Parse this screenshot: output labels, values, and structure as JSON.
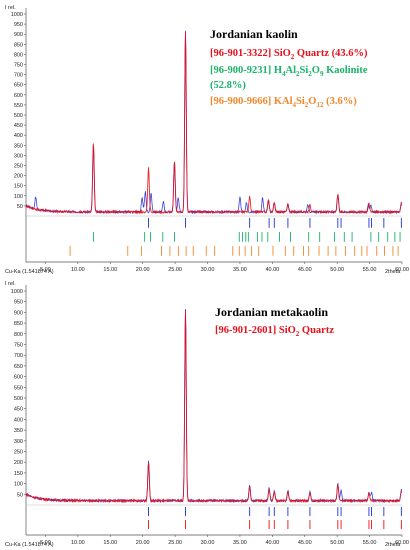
{
  "figure": {
    "panels": [
      {
        "id": "top",
        "yaxis_label": "I rel.",
        "xaxis_label": "2theta",
        "source_label": "Cu-Ka (1.541874 A)",
        "legend_title": "Jordanian kaolin",
        "legend_entries": [
          {
            "prefix": "[96-901-3322] SiO",
            "sub1": "2",
            "mid1": " Quartz (43.6%)",
            "sub2": "",
            "mid2": "",
            "sub3": "",
            "mid3": "",
            "color": "#e8101a"
          },
          {
            "prefix": "[96-900-9231] H",
            "sub1": "4",
            "mid1": "Al",
            "sub2": "2",
            "mid2": "Si",
            "sub3": "2",
            "mid3": "O",
            "sub4": "9",
            "suffix": " Kaolinite",
            "color": "#19b46a"
          },
          {
            "prefix": "(52.8%)",
            "color": "#19b46a"
          },
          {
            "prefix": "[96-900-9666] KAl",
            "sub1": "4",
            "mid1": "Si",
            "sub2": "2",
            "mid2": "O",
            "sub3": "12",
            "mid3": " (3.6%)",
            "color": "#f2872a"
          }
        ]
      },
      {
        "id": "bottom",
        "yaxis_label": "I rel.",
        "xaxis_label": "2theta",
        "source_label": "Cu-Ka (1.541874 A)",
        "legend_title": "Jordanian metakaolin",
        "legend_entries": [
          {
            "prefix": "[96-901-2601] SiO",
            "sub1": "2",
            "mid1": " Quartz",
            "color": "#e8101a"
          }
        ]
      }
    ]
  },
  "chart_data": [
    {
      "type": "line",
      "title": "Jordanian kaolin",
      "xlabel": "2theta",
      "ylabel": "I rel.",
      "xlim": [
        2,
        60
      ],
      "ylim": [
        0,
        1000
      ],
      "yticks": [
        50,
        100,
        150,
        200,
        250,
        300,
        350,
        400,
        450,
        500,
        550,
        600,
        650,
        700,
        750,
        800,
        850,
        900,
        950,
        1000
      ],
      "xticks": [
        5,
        10,
        15,
        20,
        25,
        30,
        35,
        40,
        45,
        50,
        55,
        60
      ],
      "xtick_labels": [
        "5.00",
        "10.00",
        "15.00",
        "20.00",
        "25.00",
        "30.00",
        "35.00",
        "40.00",
        "45.00",
        "50.00",
        "55.00",
        "60.00"
      ],
      "series": [
        {
          "color": "#1f2fd6",
          "peaks": [
            [
              3.5,
              60
            ],
            [
              12.4,
              330
            ],
            [
              19.9,
              70
            ],
            [
              20.4,
              100
            ],
            [
              21.3,
              90
            ],
            [
              23.2,
              50
            ],
            [
              24.9,
              245
            ],
            [
              25.5,
              70
            ],
            [
              26.6,
              900
            ],
            [
              35.0,
              75
            ],
            [
              36.0,
              45
            ],
            [
              38.5,
              70
            ],
            [
              39.4,
              55
            ],
            [
              40.3,
              40
            ],
            [
              42.4,
              35
            ],
            [
              45.5,
              35
            ],
            [
              50.1,
              85
            ],
            [
              54.8,
              35
            ],
            [
              55.2,
              35
            ],
            [
              59.9,
              40
            ],
            [
              62.3,
              35
            ]
          ]
        },
        {
          "color": "#e8101a",
          "peaks": [
            [
              12.4,
              340
            ],
            [
              20.9,
              220
            ],
            [
              24.9,
              250
            ],
            [
              26.6,
              890
            ],
            [
              36.5,
              75
            ],
            [
              39.4,
              60
            ],
            [
              40.3,
              45
            ],
            [
              42.4,
              40
            ],
            [
              45.8,
              35
            ],
            [
              50.1,
              85
            ],
            [
              54.9,
              40
            ],
            [
              59.9,
              45
            ]
          ]
        }
      ],
      "reference_markers": [
        {
          "phase": "Quartz",
          "color": "#1f2fd6",
          "positions": [
            20.9,
            26.6,
            36.5,
            39.5,
            40.3,
            42.4,
            45.8,
            50.1,
            50.6,
            54.9,
            55.3,
            57.2,
            59.9
          ]
        },
        {
          "phase": "Kaolinite",
          "color": "#19b46a",
          "positions": [
            12.4,
            20.3,
            21.2,
            23.1,
            24.9,
            34.9,
            35.4,
            35.9,
            36.3,
            37.7,
            38.4,
            39.3,
            41.1,
            42.8,
            45.6,
            47.3,
            49.6,
            51.1,
            52.3,
            55.2,
            56.4,
            57.8,
            58.9,
            59.7
          ]
        },
        {
          "phase": "KAl4Si2O12",
          "color": "#f2872a",
          "positions": [
            8.8,
            17.7,
            19.8,
            22.9,
            24.2,
            25.5,
            26.7,
            27.8,
            29.8,
            31.1,
            33.9,
            34.9,
            35.8,
            36.8,
            37.9,
            40.1,
            42.0,
            43.3,
            44.8,
            45.6,
            47.2,
            48.6,
            49.8,
            51.3,
            52.7,
            53.8,
            54.6,
            56.1,
            57.3,
            58.6,
            59.4
          ]
        }
      ]
    },
    {
      "type": "line",
      "title": "Jordanian metakaolin",
      "xlabel": "2theta",
      "ylabel": "I rel.",
      "xlim": [
        2,
        60
      ],
      "ylim": [
        0,
        1000
      ],
      "yticks": [
        50,
        100,
        150,
        200,
        250,
        300,
        350,
        400,
        450,
        500,
        550,
        600,
        650,
        700,
        750,
        800,
        850,
        900,
        950,
        1000
      ],
      "xticks": [
        5,
        10,
        15,
        20,
        25,
        30,
        35,
        40,
        45,
        50,
        55,
        60
      ],
      "xtick_labels": [
        "5.00",
        "10.00",
        "15.00",
        "20.00",
        "25.00",
        "30.00",
        "35.00",
        "40.00",
        "45.00",
        "50.00",
        "55.00",
        "60.00"
      ],
      "series": [
        {
          "color": "#1f2fd6",
          "peaks": [
            [
              20.9,
              185
            ],
            [
              26.6,
              900
            ],
            [
              36.5,
              70
            ],
            [
              39.5,
              60
            ],
            [
              40.3,
              45
            ],
            [
              42.4,
              45
            ],
            [
              45.8,
              40
            ],
            [
              50.1,
              80
            ],
            [
              50.6,
              45
            ],
            [
              54.9,
              40
            ],
            [
              55.3,
              40
            ],
            [
              59.9,
              50
            ]
          ]
        },
        {
          "color": "#e8101a",
          "peaks": [
            [
              20.9,
              180
            ],
            [
              26.6,
              890
            ],
            [
              36.5,
              65
            ],
            [
              39.5,
              55
            ],
            [
              40.3,
              40
            ],
            [
              42.4,
              40
            ],
            [
              45.8,
              35
            ],
            [
              50.1,
              75
            ],
            [
              54.9,
              35
            ],
            [
              59.9,
              45
            ]
          ]
        }
      ],
      "reference_markers": [
        {
          "phase": "Quartz",
          "color": "#1f2fd6",
          "positions": [
            20.9,
            26.6,
            36.5,
            39.5,
            40.3,
            42.4,
            45.8,
            50.1,
            50.6,
            54.9,
            55.3,
            57.2,
            59.9
          ]
        },
        {
          "phase": "Quartz",
          "color": "#e8101a",
          "positions": [
            20.9,
            26.6,
            36.5,
            39.5,
            40.3,
            42.4,
            45.8,
            50.1,
            50.6,
            54.9,
            55.3,
            57.2,
            59.9
          ]
        }
      ]
    }
  ]
}
